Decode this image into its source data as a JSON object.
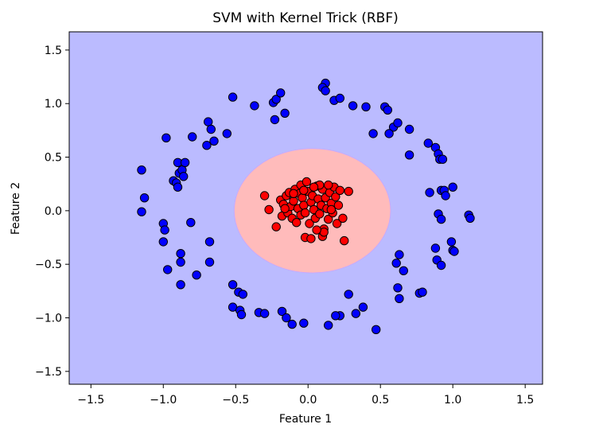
{
  "chart_data": {
    "type": "scatter",
    "title": "SVM with Kernel Trick (RBF)",
    "xlabel": "Feature 1",
    "ylabel": "Feature 2",
    "xlim": [
      -1.65,
      1.62
    ],
    "ylim": [
      -1.62,
      1.67
    ],
    "xticks": [
      -1.5,
      -1.0,
      -0.5,
      0.0,
      0.5,
      1.0,
      1.5
    ],
    "yticks": [
      -1.5,
      -1.0,
      -0.5,
      0.0,
      0.5,
      1.0,
      1.5
    ],
    "xtick_labels": [
      "−1.5",
      "−1.0",
      "−0.5",
      "0.0",
      "0.5",
      "1.0",
      "1.5"
    ],
    "ytick_labels": [
      "−1.5",
      "−1.0",
      "−0.5",
      "0.0",
      "0.5",
      "1.0",
      "1.5"
    ],
    "grid": false,
    "decision_regions": {
      "outer_color": "#bbbbff",
      "inner_color": "#ffbbbb",
      "inner_boundary": {
        "center": [
          0.03,
          0.0
        ],
        "rx": 0.54,
        "ry": 0.58
      }
    },
    "series": [
      {
        "color": "#0000ff",
        "edgecolor": "#000000",
        "points": [
          [
            -1.15,
            0.38
          ],
          [
            -1.13,
            0.12
          ],
          [
            -1.15,
            -0.01
          ],
          [
            -0.98,
            0.68
          ],
          [
            -0.93,
            0.28
          ],
          [
            -0.91,
            0.26
          ],
          [
            -0.9,
            0.45
          ],
          [
            -0.89,
            0.35
          ],
          [
            -0.87,
            0.38
          ],
          [
            -0.86,
            0.32
          ],
          [
            -0.85,
            0.45
          ],
          [
            -0.9,
            0.22
          ],
          [
            -1.0,
            -0.12
          ],
          [
            -0.99,
            -0.18
          ],
          [
            -1.0,
            -0.29
          ],
          [
            -0.97,
            -0.55
          ],
          [
            -0.88,
            -0.4
          ],
          [
            -0.88,
            -0.48
          ],
          [
            -0.88,
            -0.69
          ],
          [
            -0.81,
            -0.11
          ],
          [
            -0.77,
            -0.6
          ],
          [
            -0.8,
            0.69
          ],
          [
            -0.69,
            0.83
          ],
          [
            -0.67,
            0.76
          ],
          [
            -0.7,
            0.61
          ],
          [
            -0.65,
            0.65
          ],
          [
            -0.56,
            0.72
          ],
          [
            -0.68,
            -0.29
          ],
          [
            -0.68,
            -0.48
          ],
          [
            -0.52,
            1.06
          ],
          [
            -0.37,
            0.98
          ],
          [
            -0.24,
            1.01
          ],
          [
            -0.22,
            1.04
          ],
          [
            -0.19,
            1.1
          ],
          [
            -0.23,
            0.85
          ],
          [
            -0.16,
            0.91
          ],
          [
            -0.52,
            -0.69
          ],
          [
            -0.48,
            -0.76
          ],
          [
            -0.45,
            -0.78
          ],
          [
            -0.52,
            -0.9
          ],
          [
            -0.47,
            -0.93
          ],
          [
            -0.46,
            -0.97
          ],
          [
            -0.34,
            -0.95
          ],
          [
            -0.3,
            -0.96
          ],
          [
            -0.18,
            -0.94
          ],
          [
            -0.15,
            -1.0
          ],
          [
            -0.11,
            -1.06
          ],
          [
            -0.03,
            -1.05
          ],
          [
            0.12,
            1.19
          ],
          [
            0.1,
            1.15
          ],
          [
            0.12,
            1.12
          ],
          [
            0.18,
            1.03
          ],
          [
            0.22,
            1.05
          ],
          [
            0.31,
            0.98
          ],
          [
            0.4,
            0.97
          ],
          [
            0.53,
            0.97
          ],
          [
            0.55,
            0.94
          ],
          [
            0.59,
            0.78
          ],
          [
            0.62,
            0.82
          ],
          [
            0.7,
            0.76
          ],
          [
            0.56,
            0.72
          ],
          [
            0.45,
            0.72
          ],
          [
            0.7,
            0.52
          ],
          [
            0.83,
            0.63
          ],
          [
            0.88,
            0.59
          ],
          [
            0.9,
            0.53
          ],
          [
            0.91,
            0.48
          ],
          [
            0.93,
            0.48
          ],
          [
            0.92,
            0.19
          ],
          [
            0.94,
            0.19
          ],
          [
            0.95,
            0.14
          ],
          [
            1.0,
            0.22
          ],
          [
            0.84,
            0.17
          ],
          [
            0.9,
            -0.03
          ],
          [
            0.92,
            -0.08
          ],
          [
            1.11,
            -0.04
          ],
          [
            1.12,
            -0.07
          ],
          [
            0.99,
            -0.29
          ],
          [
            1.0,
            -0.37
          ],
          [
            1.01,
            -0.38
          ],
          [
            0.88,
            -0.35
          ],
          [
            0.89,
            -0.46
          ],
          [
            0.92,
            -0.51
          ],
          [
            0.61,
            -0.49
          ],
          [
            0.63,
            -0.41
          ],
          [
            0.66,
            -0.56
          ],
          [
            0.62,
            -0.72
          ],
          [
            0.63,
            -0.82
          ],
          [
            0.77,
            -0.77
          ],
          [
            0.79,
            -0.76
          ],
          [
            0.28,
            -0.78
          ],
          [
            0.38,
            -0.9
          ],
          [
            0.33,
            -0.96
          ],
          [
            0.22,
            -0.98
          ],
          [
            0.19,
            -0.98
          ],
          [
            0.14,
            -1.07
          ],
          [
            0.47,
            -1.11
          ]
        ]
      },
      {
        "color": "#ff0000",
        "edgecolor": "#000000",
        "points": [
          [
            -0.3,
            0.14
          ],
          [
            -0.27,
            0.01
          ],
          [
            -0.22,
            -0.15
          ],
          [
            -0.19,
            0.1
          ],
          [
            -0.18,
            -0.05
          ],
          [
            -0.17,
            0.06
          ],
          [
            -0.15,
            0.14
          ],
          [
            -0.14,
            -0.02
          ],
          [
            -0.13,
            0.17
          ],
          [
            -0.12,
            0.04
          ],
          [
            -0.11,
            -0.07
          ],
          [
            -0.1,
            0.09
          ],
          [
            -0.09,
            0.2
          ],
          [
            -0.08,
            -0.11
          ],
          [
            -0.07,
            0.02
          ],
          [
            -0.06,
            0.16
          ],
          [
            -0.05,
            0.24
          ],
          [
            -0.05,
            -0.04
          ],
          [
            -0.04,
            0.12
          ],
          [
            -0.03,
            0.05
          ],
          [
            -0.02,
            -0.02
          ],
          [
            -0.01,
            0.27
          ],
          [
            0.0,
            0.18
          ],
          [
            0.01,
            -0.12
          ],
          [
            0.02,
            0.08
          ],
          [
            0.03,
            0.14
          ],
          [
            0.04,
            0.01
          ],
          [
            0.05,
            -0.07
          ],
          [
            0.06,
            0.23
          ],
          [
            0.07,
            0.11
          ],
          [
            0.08,
            -0.03
          ],
          [
            0.09,
            0.05
          ],
          [
            0.1,
            0.2
          ],
          [
            0.11,
            -0.17
          ],
          [
            0.12,
            0.12
          ],
          [
            0.13,
            0.02
          ],
          [
            0.14,
            -0.08
          ],
          [
            0.15,
            0.17
          ],
          [
            0.16,
            0.07
          ],
          [
            0.17,
            -0.02
          ],
          [
            0.18,
            0.22
          ],
          [
            0.19,
            0.13
          ],
          [
            0.2,
            -0.12
          ],
          [
            0.21,
            0.05
          ],
          [
            0.22,
            0.19
          ],
          [
            0.24,
            -0.07
          ],
          [
            0.28,
            0.18
          ],
          [
            0.25,
            -0.28
          ],
          [
            -0.02,
            -0.25
          ],
          [
            0.02,
            -0.26
          ],
          [
            0.1,
            -0.24
          ],
          [
            0.11,
            -0.2
          ],
          [
            0.14,
            0.24
          ],
          [
            0.08,
            0.24
          ],
          [
            -0.03,
            0.19
          ],
          [
            -0.1,
            0.16
          ],
          [
            -0.16,
            0.02
          ],
          [
            0.04,
            0.22
          ],
          [
            0.16,
            0.01
          ],
          [
            0.06,
            -0.18
          ]
        ]
      }
    ]
  }
}
